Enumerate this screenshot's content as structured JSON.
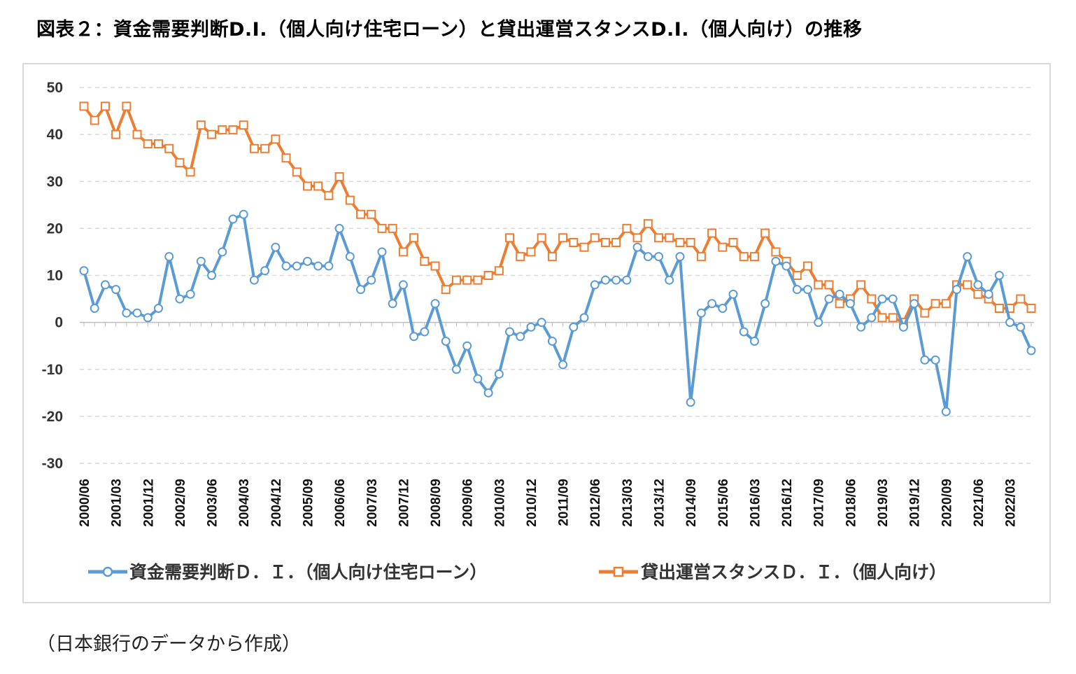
{
  "title": "図表２：資金需要判断D.I.（個人向け住宅ローン）と貸出運営スタンスD.I.（個人向け）の推移",
  "source": "（日本銀行のデータから作成）",
  "colors": {
    "series1": "#5b9bd5",
    "series2": "#ed7d31",
    "grid": "#d9d9d9",
    "axis": "#bfbfbf"
  },
  "chart_data": {
    "type": "line",
    "title": "",
    "ylim": [
      -30,
      50
    ],
    "yticks": [
      "50",
      "40",
      "30",
      "20",
      "10",
      "0",
      "-10",
      "-20",
      "-30"
    ],
    "ytick_values": [
      50,
      40,
      30,
      20,
      10,
      0,
      -10,
      -20,
      -30
    ],
    "grid": "horizontal dashed",
    "legend_position": "bottom",
    "x_tick_labels": [
      "2000/06",
      "2001/03",
      "2001/12",
      "2002/09",
      "2003/06",
      "2004/03",
      "2004/12",
      "2005/09",
      "2006/06",
      "2007/03",
      "2007/12",
      "2008/09",
      "2009/06",
      "2010/03",
      "2010/12",
      "2011/09",
      "2012/06",
      "2013/03",
      "2013/12",
      "2014/09",
      "2015/06",
      "2016/03",
      "2016/12",
      "2017/09",
      "2018/06",
      "2019/03",
      "2019/12",
      "2020/09",
      "2021/06",
      "2022/03"
    ],
    "series": [
      {
        "name": "資金需要判断Ｄ．Ｉ．（個人向け住宅ローン）",
        "marker": "circle",
        "values": [
          11,
          3,
          8,
          7,
          2,
          2,
          1,
          3,
          14,
          5,
          6,
          13,
          10,
          15,
          22,
          23,
          9,
          11,
          16,
          12,
          12,
          13,
          12,
          12,
          20,
          14,
          7,
          9,
          15,
          4,
          8,
          -3,
          -2,
          4,
          -4,
          -10,
          -5,
          -12,
          -15,
          -11,
          -2,
          -3,
          -1,
          0,
          -4,
          -9,
          -1,
          1,
          8,
          9,
          9,
          9,
          16,
          14,
          14,
          9,
          14,
          -17,
          2,
          4,
          3,
          6,
          -2,
          -4,
          4,
          13,
          12,
          7,
          7,
          0,
          5,
          6,
          4,
          -1,
          1,
          5,
          5,
          -1,
          4,
          -8,
          -8,
          -19,
          7,
          14,
          8,
          6,
          10,
          0,
          -1,
          -6
        ]
      },
      {
        "name": "貸出運営スタンスＤ．Ｉ．（個人向け）",
        "marker": "square",
        "values": [
          46,
          43,
          46,
          40,
          46,
          40,
          38,
          38,
          37,
          34,
          32,
          42,
          40,
          41,
          41,
          42,
          37,
          37,
          39,
          35,
          32,
          29,
          29,
          27,
          31,
          26,
          23,
          23,
          20,
          20,
          15,
          18,
          13,
          12,
          7,
          9,
          9,
          9,
          10,
          11,
          18,
          14,
          15,
          18,
          14,
          18,
          17,
          16,
          18,
          17,
          17,
          20,
          18,
          21,
          18,
          18,
          17,
          17,
          14,
          19,
          16,
          17,
          14,
          14,
          19,
          15,
          13,
          10,
          12,
          8,
          8,
          4,
          5,
          8,
          5,
          1,
          1,
          0,
          5,
          2,
          4,
          4,
          8,
          8,
          6,
          5,
          3,
          3,
          5,
          3
        ]
      }
    ]
  }
}
